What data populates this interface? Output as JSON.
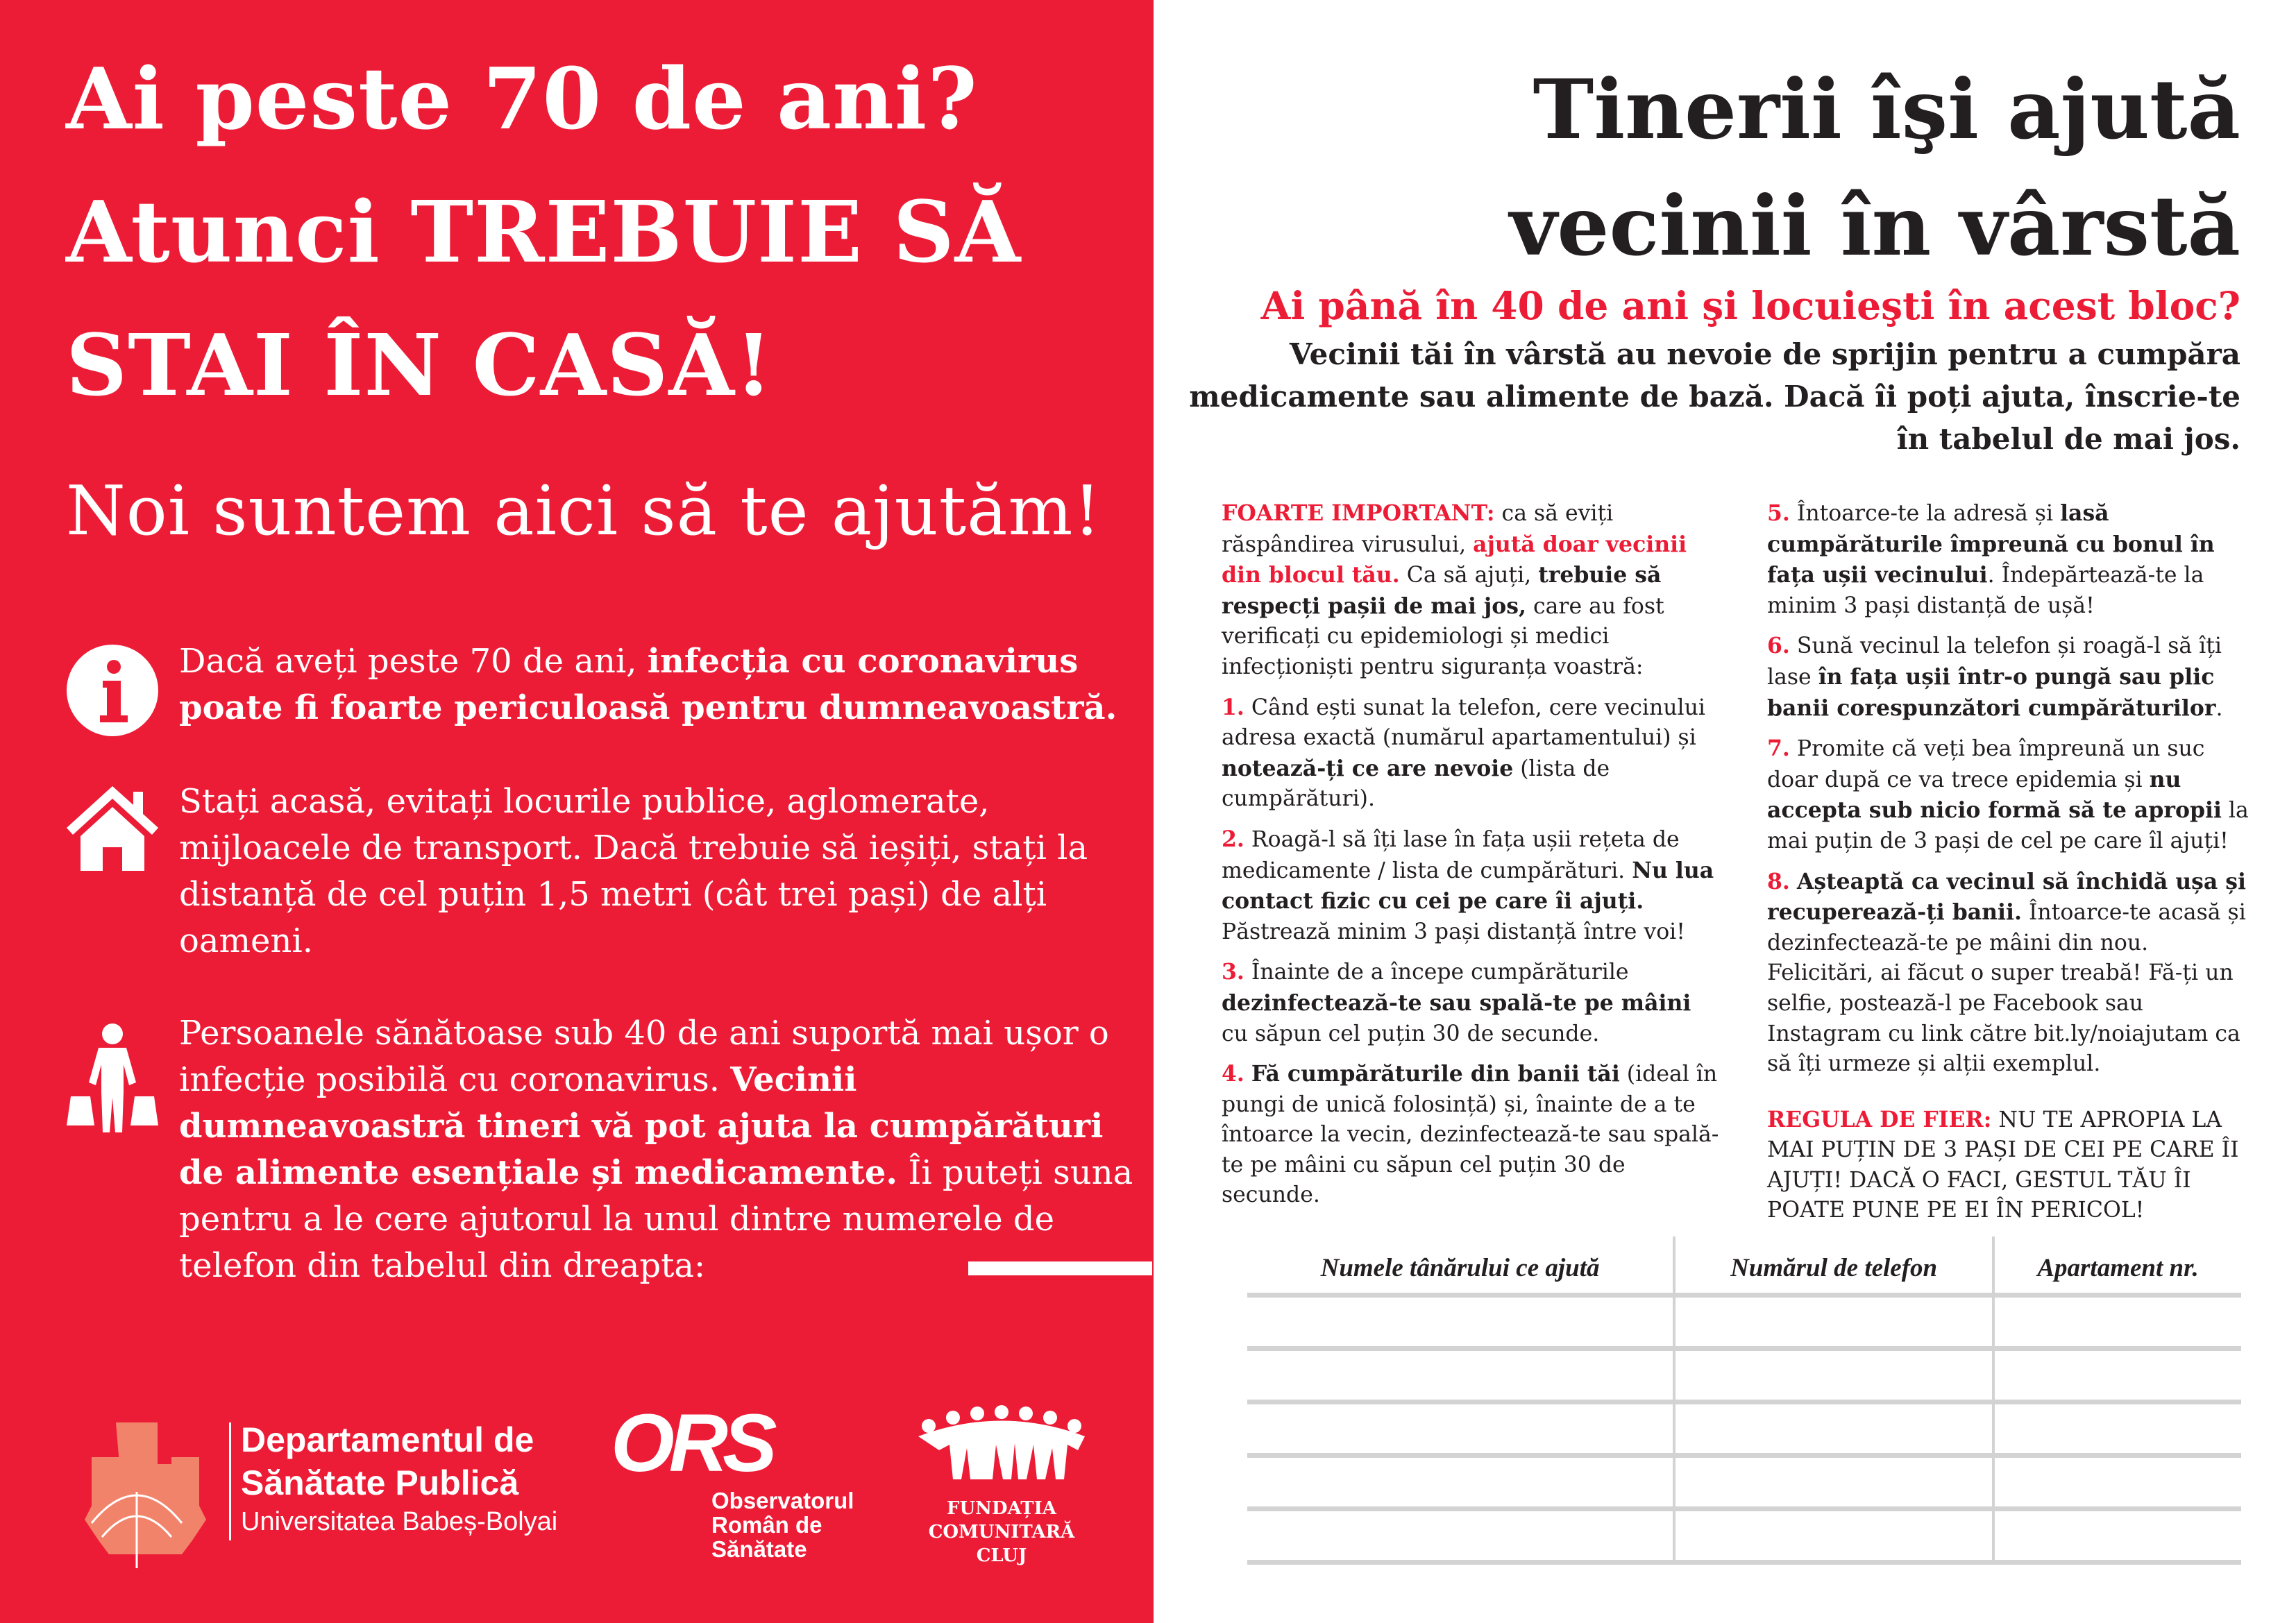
{
  "colors": {
    "red": "#ED1C36",
    "text": "#231f20",
    "table_lines": "#d3d3d3"
  },
  "left": {
    "title_lines": [
      "Ai peste 70 de ani?",
      "Atunci TREBUIE SĂ",
      "STAI ÎN CASĂ!"
    ],
    "subtitle": "Noi suntem aici să te ajutăm!",
    "items": [
      {
        "icon": "info-icon",
        "segments": [
          {
            "t": "Dacă aveți peste 70 de ani, "
          },
          {
            "t": "infecția cu coronavirus poate fi foarte periculoasă pentru dumneavoastră.",
            "b": true
          }
        ]
      },
      {
        "icon": "house-icon",
        "segments": [
          {
            "t": "Stați acasă, evitați locurile publice, aglomerate, mijloacele de transport. Dacă trebuie să ieșiți, stați la distanță de cel puțin 1,5 metri (cât trei pași) de alți oameni."
          }
        ]
      },
      {
        "icon": "shopping-person-icon",
        "segments": [
          {
            "t": "Persoanele sănătoase sub 40 de ani suportă mai ușor o infecție posibilă cu coronavirus. "
          },
          {
            "t": "Vecinii dumneavoastră tineri vă pot ajuta la cumpărături de alimente esențiale și medicamente.",
            "b": true
          },
          {
            "t": " Îi puteți suna pentru a le cere ajutorul la unul dintre numerele de telefon din tabelul din dreapta:"
          }
        ]
      }
    ],
    "logos": {
      "dsp": {
        "line1": "Departamentul de",
        "line2": "Sănătate Publică",
        "line3": "Universitatea Babeș-Bolyai"
      },
      "ors": {
        "mark": "ORS",
        "line1": "Observatorul",
        "line2": "Român de",
        "line3": "Sănătate"
      },
      "fcc": {
        "line1": "FUNDAȚIA",
        "line2": "COMUNITARĂ",
        "line3": "CLUJ"
      }
    }
  },
  "right": {
    "title_lines": [
      "Tinerii îşi ajută",
      "vecinii în vârstă"
    ],
    "question": "Ai până în 40 de ani şi locuieşti în acest bloc?",
    "intro_lines": [
      "Vecinii tăi în vârstă au nevoie de sprijin pentru a cumpăra",
      "medicamente sau alimente de bază. Dacă îi poți ajuta, înscrie-te",
      "în tabelul de mai jos."
    ],
    "col1": [
      [
        {
          "t": "FOARTE IMPORTANT:",
          "r": true
        },
        {
          "t": " ca să eviți răspândirea virusului, "
        },
        {
          "t": "ajută doar vecinii din blocul tău.",
          "r": true
        },
        {
          "t": " Ca să ajuți, "
        },
        {
          "t": "trebuie să respecți pașii de mai jos,",
          "b": true
        },
        {
          "t": " care au fost verificați cu epidemiologi și medici infecționiști pentru siguranța voastră:"
        }
      ],
      [
        {
          "t": "1.",
          "r": true
        },
        {
          "t": " Când ești sunat la telefon, cere vecinului adresa exactă (numărul apartamentului) și "
        },
        {
          "t": "notează-ți ce are nevoie",
          "b": true
        },
        {
          "t": " (lista de cumpărături)."
        }
      ],
      [
        {
          "t": "2.",
          "r": true
        },
        {
          "t": " Roagă-l să îți lase în fața ușii rețeta de medicamente / lista de cumpărături. "
        },
        {
          "t": "Nu lua contact fizic cu cei pe care îi ajuți.",
          "b": true
        },
        {
          "t": " Păstrează minim 3 pași distanță între voi!"
        }
      ],
      [
        {
          "t": "3.",
          "r": true
        },
        {
          "t": " Înainte de a începe cumpărăturile "
        },
        {
          "t": "dezinfectează-te sau spală-te pe mâini",
          "b": true
        },
        {
          "t": " cu săpun cel puțin 30 de secunde."
        }
      ],
      [
        {
          "t": "4.",
          "r": true
        },
        {
          "t": " "
        },
        {
          "t": "Fă cumpărăturile din banii tăi",
          "b": true
        },
        {
          "t": " (ideal în pungi de unică folosință) și, înainte de a te întoarce la vecin, dezinfectează-te sau spală-te pe mâini cu săpun cel puțin 30 de secunde."
        }
      ]
    ],
    "col2": [
      [
        {
          "t": "5.",
          "r": true
        },
        {
          "t": " Întoarce-te la adresă și "
        },
        {
          "t": "lasă cumpărăturile împreună cu bonul în fața ușii vecinului",
          "b": true
        },
        {
          "t": ". Îndepărtează-te la minim 3 pași distanță de ușă!"
        }
      ],
      [
        {
          "t": "6.",
          "r": true
        },
        {
          "t": " Sună vecinul la telefon și roagă-l să îți lase "
        },
        {
          "t": "în fața ușii într-o pungă sau plic banii corespunzători cumpărăturilor",
          "b": true
        },
        {
          "t": "."
        }
      ],
      [
        {
          "t": "7.",
          "r": true
        },
        {
          "t": " Promite că veți bea împreună un suc doar după ce va trece epidemia și "
        },
        {
          "t": "nu accepta sub nicio formă să te apropii",
          "b": true
        },
        {
          "t": " la mai puțin de 3 pași de cel pe care îl ajuți!"
        }
      ],
      [
        {
          "t": "8.",
          "r": true
        },
        {
          "t": " "
        },
        {
          "t": "Așteaptă ca vecinul să închidă ușa și recuperează-ți banii.",
          "b": true
        },
        {
          "t": " Întoarce-te acasă și dezinfectează-te pe mâini din nou. Felicitări, ai făcut o super treabă! Fă-ți un selfie, postează-l pe Facebook sau Instagram cu link către bit.ly/noiajutam ca să îți urmeze și alții exemplul."
        }
      ],
      [
        {
          "t": "REGULA DE FIER:",
          "r": true
        },
        {
          "t": " NU TE APROPIA LA MAI PUȚIN DE 3 PAȘI DE CEI PE CARE ÎI AJUȚI! DACĂ O FACI, GESTUL TĂU ÎI POATE PUNE PE EI ÎN PERICOL!"
        }
      ]
    ],
    "table": {
      "headers": [
        "Numele tânărului ce ajută",
        "Numărul de telefon",
        "Apartament nr."
      ],
      "rows": [
        [
          "",
          "",
          ""
        ],
        [
          "",
          "",
          ""
        ],
        [
          "",
          "",
          ""
        ],
        [
          "",
          "",
          ""
        ],
        [
          "",
          "",
          ""
        ]
      ]
    }
  }
}
